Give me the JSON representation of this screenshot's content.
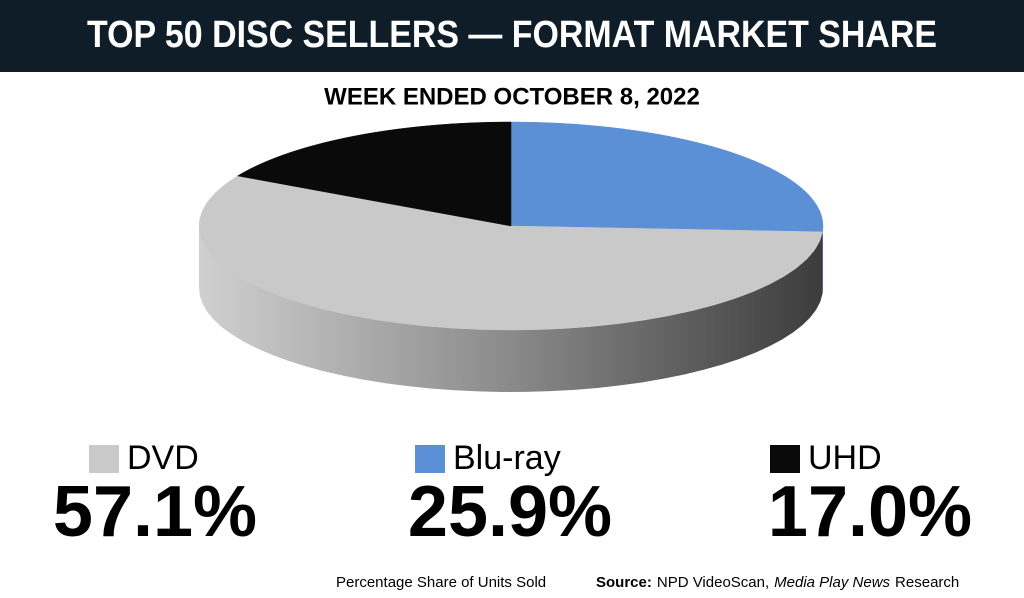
{
  "chart_data": {
    "type": "pie",
    "title": "TOP 50 DISC SELLERS — FORMAT MARKET SHARE",
    "subtitle": "WEEK ENDED OCTOBER 8, 2022",
    "categories": [
      "DVD",
      "Blu-ray",
      "UHD"
    ],
    "values": [
      57.1,
      25.9,
      17.0
    ],
    "value_labels": [
      "57.1%",
      "25.9%",
      "17.0%"
    ],
    "colors": [
      "#c9c9c9",
      "#5b8fd6",
      "#0a0a0a"
    ],
    "note": "Percentage Share of Units Sold",
    "source": {
      "label": "Source:",
      "text": "NPD VideoScan,",
      "publication": "Media Play News",
      "suffix": "Research"
    }
  }
}
